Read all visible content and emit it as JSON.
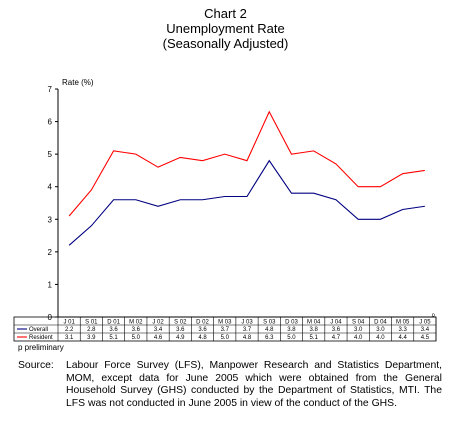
{
  "title_lines": [
    "Chart 2",
    "Unemployment Rate",
    "(Seasonally Adjusted)"
  ],
  "footnote": "p  preliminary",
  "source_label": "Source:",
  "source_text": "Labour Force Survey (LFS), Manpower Research and Statistics Department, MOM, except data for June 2005 which were obtained from the General Household Survey (GHS) conducted by the Department of Statistics, MTI. The LFS was not conducted in June 2005 in view of the conduct of the GHS.",
  "colors": {
    "overall": "#000080",
    "resident": "#ff0000",
    "axis": "#000000"
  },
  "chart_data": {
    "type": "line",
    "ylabel": "Rate (%)",
    "ylim": [
      0,
      7
    ],
    "yticks": [
      0,
      1,
      2,
      3,
      4,
      5,
      6,
      7
    ],
    "grid": false,
    "legend": "table-below",
    "categories": [
      "J 01",
      "S 01",
      "D 01",
      "M 02",
      "J 02",
      "S 02",
      "D 02",
      "M 03",
      "J 03",
      "S 03",
      "D 03",
      "M 04",
      "J 04",
      "S 04",
      "D 04",
      "M 05",
      "J 05"
    ],
    "last_category_mark": "p",
    "series": [
      {
        "name": "Overall",
        "values": [
          2.2,
          2.8,
          3.6,
          3.6,
          3.4,
          3.6,
          3.6,
          3.7,
          3.7,
          4.8,
          3.8,
          3.8,
          3.6,
          3.0,
          3.0,
          3.3,
          3.4
        ]
      },
      {
        "name": "Resident",
        "values": [
          3.1,
          3.9,
          5.1,
          5.0,
          4.6,
          4.9,
          4.8,
          5.0,
          4.8,
          6.3,
          5.0,
          5.1,
          4.7,
          4.0,
          4.0,
          4.4,
          4.5
        ]
      }
    ]
  }
}
